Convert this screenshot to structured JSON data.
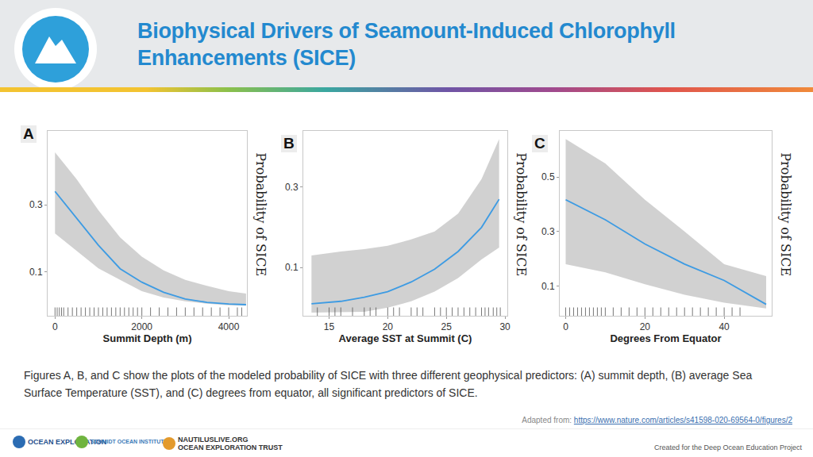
{
  "title": [
    "Biophysical Drivers of Seamount-Induced Chlorophyll",
    "Enhancements (SICE)"
  ],
  "chart_data": [
    {
      "type": "line",
      "label": "A",
      "xlabel": "Summit Depth (m)",
      "ylabel": "Probability of SICE",
      "x": [
        0,
        500,
        1000,
        1500,
        2000,
        2500,
        3000,
        3500,
        4000,
        4400
      ],
      "values": [
        0.34,
        0.26,
        0.18,
        0.11,
        0.07,
        0.04,
        0.02,
        0.01,
        0.005,
        0.003
      ],
      "upper": [
        0.456,
        0.376,
        0.284,
        0.203,
        0.146,
        0.105,
        0.077,
        0.059,
        0.043,
        0.036
      ],
      "lower": [
        0.215,
        0.162,
        0.111,
        0.077,
        0.043,
        0.024,
        0.013,
        0.006,
        0.001,
        0.0
      ],
      "rug": [
        0,
        50,
        100,
        150,
        200,
        300,
        400,
        500,
        600,
        700,
        800,
        900,
        1000,
        1100,
        1200,
        1300,
        1400,
        1500,
        1600,
        1700,
        1800,
        1900,
        2000,
        2200,
        2400,
        2600,
        2800,
        3000,
        3200,
        3400,
        3600,
        3800,
        4000,
        4200,
        4300
      ],
      "color": "#3d9be3",
      "xlim": [
        -170,
        4420
      ],
      "ylim": [
        -0.03,
        0.52
      ],
      "xticks": [
        0,
        2000,
        4000
      ],
      "yticks": [
        0.1,
        0.3
      ],
      "grid": false
    },
    {
      "type": "line",
      "label": "B",
      "xlabel": "Average SST at Summit (C)",
      "ylabel": "Probability of SICE",
      "x": [
        13.5,
        16,
        18,
        20,
        22,
        24,
        26,
        28,
        29.5
      ],
      "values": [
        0.01,
        0.016,
        0.026,
        0.04,
        0.064,
        0.096,
        0.14,
        0.2,
        0.27
      ],
      "upper": [
        0.13,
        0.14,
        0.146,
        0.154,
        0.17,
        0.19,
        0.234,
        0.32,
        0.42
      ],
      "lower": [
        -0.012,
        -0.011,
        -0.01,
        0.0,
        0.016,
        0.04,
        0.074,
        0.12,
        0.15
      ],
      "rug": [
        14,
        15,
        15.5,
        16,
        17,
        18,
        18.5,
        19,
        20,
        20.5,
        21,
        22,
        22.5,
        23,
        24,
        24.5,
        25,
        25.5,
        26,
        26.5,
        27,
        27.5,
        28,
        28.3,
        28.6,
        29,
        29.3,
        29.6
      ],
      "color": "#3d9be3",
      "xlim": [
        12.8,
        30.2
      ],
      "ylim": [
        -0.02,
        0.44
      ],
      "xticks": [
        15,
        20,
        25,
        30
      ],
      "yticks": [
        0.1,
        0.3
      ],
      "grid": false
    },
    {
      "type": "line",
      "label": "C",
      "xlabel": "Degrees From Equator",
      "ylabel": "Probability of SICE",
      "x": [
        0,
        10,
        20,
        30,
        40,
        50.6
      ],
      "values": [
        0.417,
        0.343,
        0.254,
        0.18,
        0.12,
        0.032
      ],
      "upper": [
        0.64,
        0.55,
        0.417,
        0.3,
        0.18,
        0.136
      ],
      "lower": [
        0.18,
        0.15,
        0.106,
        0.067,
        0.038,
        0.017
      ],
      "rug": [
        0,
        1,
        2,
        3,
        4,
        5,
        6,
        7,
        8,
        9,
        10,
        12,
        14,
        16,
        18,
        20,
        22,
        24,
        26,
        28,
        30,
        32,
        34,
        36,
        38,
        40,
        42,
        44
      ],
      "color": "#3d9be3",
      "xlim": [
        -1.5,
        52
      ],
      "ylim": [
        -0.01,
        0.67
      ],
      "xticks": [
        0,
        20,
        40
      ],
      "yticks": [
        0.1,
        0.3,
        0.5
      ],
      "grid": false
    }
  ],
  "caption": "Figures A, B, and C show the plots of the modeled probability of SICE with three different geophysical predictors: (A) summit depth, (B) average Sea Surface Temperature (SST), and (C) degrees from equator, all significant predictors of SICE.",
  "source": {
    "prefix": "Adapted from: ",
    "link": "https://www.nature.com/articles/s41598-020-69564-0/figures/2"
  },
  "footer": {
    "logos": [
      "OCEAN EXPLORATION",
      "SCHMIDT OCEAN INSTITUTE",
      "NAUTILUSLIVE.ORG",
      "OCEAN EXPLORATION TRUST"
    ],
    "credit": "Created for the Deep Ocean Education Project"
  }
}
